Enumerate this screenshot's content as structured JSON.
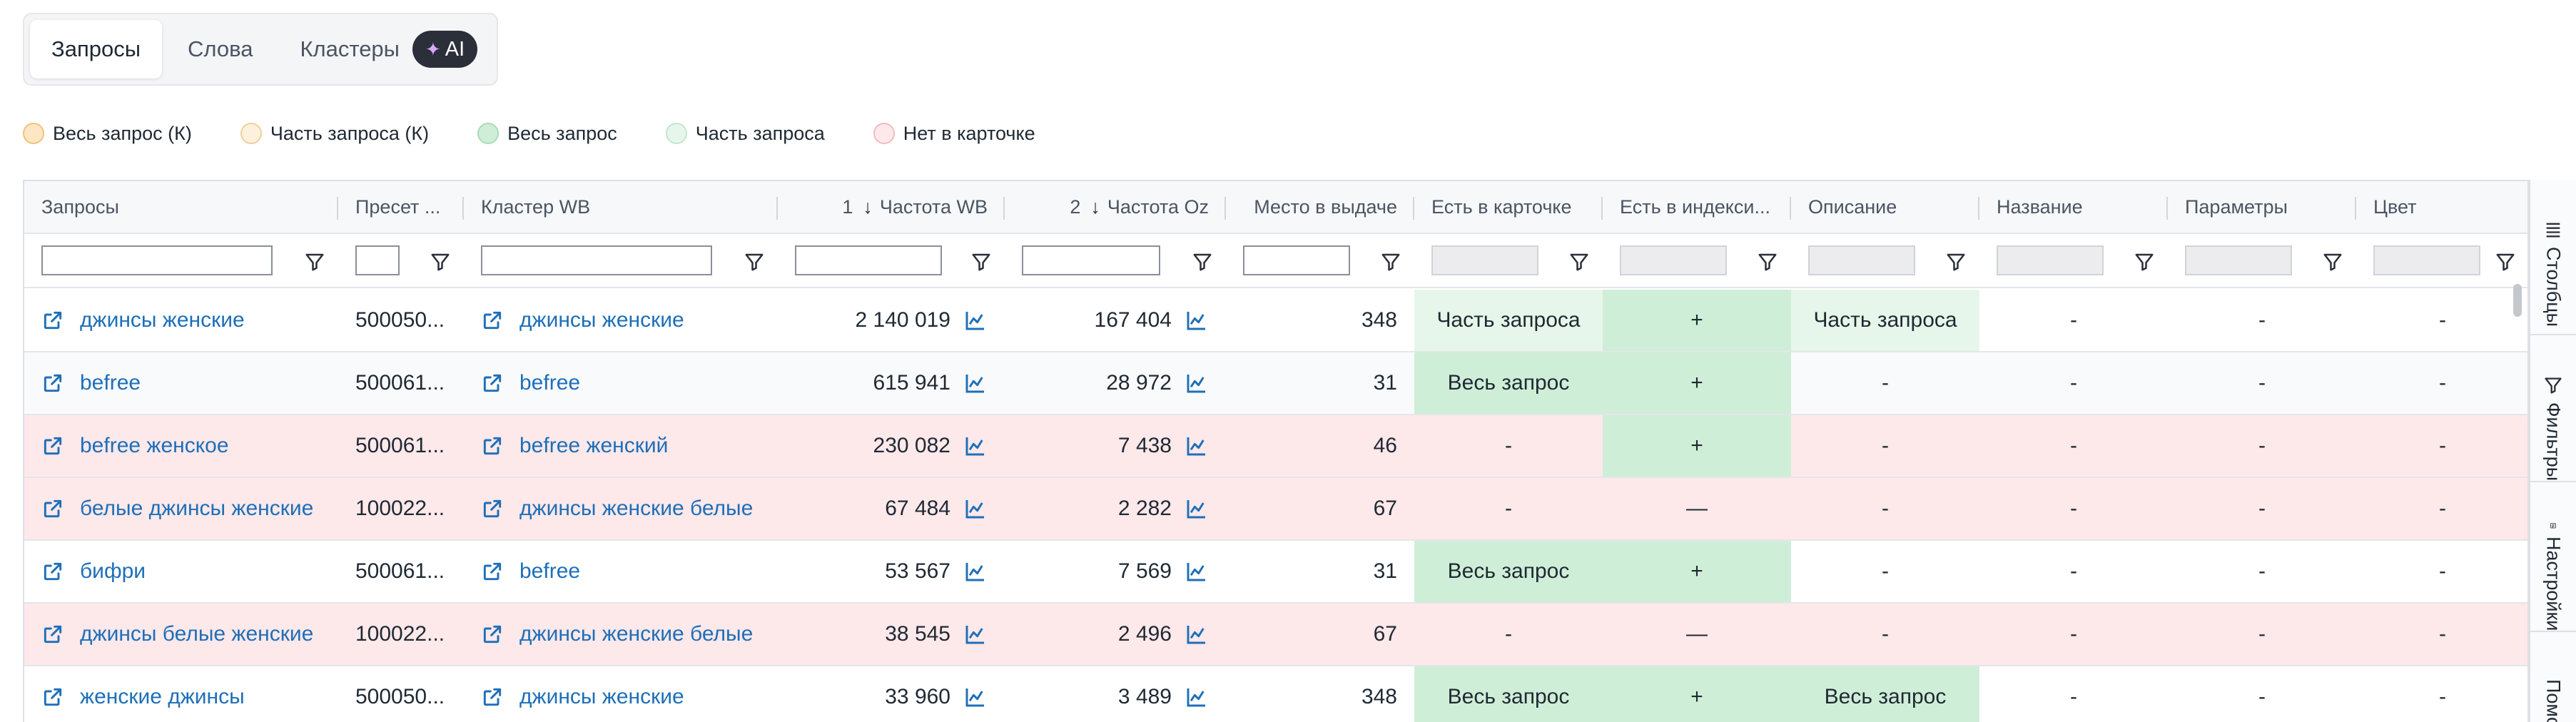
{
  "tabs": [
    {
      "label": "Запросы",
      "active": true
    },
    {
      "label": "Слова",
      "active": false
    },
    {
      "label": "Кластеры",
      "active": false,
      "badge": "AI"
    }
  ],
  "legend": [
    {
      "label": "Весь запрос (К)",
      "fill": "#fde6c4",
      "border": "#f0c27a"
    },
    {
      "label": "Часть запроса (К)",
      "fill": "#fdf1de",
      "border": "#f0cf9a"
    },
    {
      "label": "Весь запрос",
      "fill": "#cfeed7",
      "border": "#a9dcb6"
    },
    {
      "label": "Часть запроса",
      "fill": "#e7f6ea",
      "border": "#c4e6cc"
    },
    {
      "label": "Нет в карточке",
      "fill": "#fde8ea",
      "border": "#f2bcc2"
    }
  ],
  "columns": [
    {
      "key": "query",
      "label": "Запросы",
      "align": "left"
    },
    {
      "key": "preset",
      "label": "Пресет ...",
      "align": "left"
    },
    {
      "key": "cluster",
      "label": "Кластер WB",
      "align": "left"
    },
    {
      "key": "freq_wb",
      "label": "Частота WB",
      "sort_index": "1",
      "sort": "↓",
      "align": "right"
    },
    {
      "key": "freq_oz",
      "label": "Частота Oz",
      "sort_index": "2",
      "sort": "↓",
      "align": "right"
    },
    {
      "key": "place",
      "label": "Место в выдаче",
      "align": "right"
    },
    {
      "key": "in_card",
      "label": "Есть в карточке",
      "align": "left"
    },
    {
      "key": "in_index",
      "label": "Есть в индекси...",
      "align": "left"
    },
    {
      "key": "description",
      "label": "Описание",
      "align": "left"
    },
    {
      "key": "name",
      "label": "Название",
      "align": "left"
    },
    {
      "key": "params",
      "label": "Параметры",
      "align": "left"
    },
    {
      "key": "color",
      "label": "Цвет",
      "align": "left"
    }
  ],
  "rows": [
    {
      "tone": "white",
      "query": "джинсы женские",
      "preset": "500050...",
      "cluster": "джинсы женские",
      "freq_wb": "2 140 019",
      "freq_oz": "167 404",
      "place": "348",
      "in_card": "Часть запроса",
      "in_card_tone": "lightgreen",
      "in_index": "+",
      "description": "Часть запроса",
      "description_tone": "lightgreen",
      "name": "-",
      "params": "-",
      "color": "-"
    },
    {
      "tone": "light",
      "query": "befree",
      "preset": "500061...",
      "cluster": "befree",
      "freq_wb": "615 941",
      "freq_oz": "28 972",
      "place": "31",
      "in_card": "Весь запрос",
      "in_card_tone": "green",
      "in_index": "+",
      "description": "-",
      "description_tone": "",
      "name": "-",
      "params": "-",
      "color": "-"
    },
    {
      "tone": "pink",
      "query": "befree женское",
      "preset": "500061...",
      "cluster": "befree женский",
      "freq_wb": "230 082",
      "freq_oz": "7 438",
      "place": "46",
      "in_card": "-",
      "in_card_tone": "",
      "in_index": "+",
      "description": "-",
      "description_tone": "",
      "name": "-",
      "params": "-",
      "color": "-"
    },
    {
      "tone": "pink",
      "query": "белые джинсы женские",
      "preset": "100022...",
      "cluster": "джинсы женские белые",
      "freq_wb": "67 484",
      "freq_oz": "2 282",
      "place": "67",
      "in_card": "-",
      "in_card_tone": "",
      "in_index": "—",
      "description": "-",
      "description_tone": "",
      "name": "-",
      "params": "-",
      "color": "-"
    },
    {
      "tone": "white",
      "query": "бифри",
      "preset": "500061...",
      "cluster": "befree",
      "freq_wb": "53 567",
      "freq_oz": "7 569",
      "place": "31",
      "in_card": "Весь запрос",
      "in_card_tone": "green",
      "in_index": "+",
      "description": "-",
      "description_tone": "",
      "name": "-",
      "params": "-",
      "color": "-"
    },
    {
      "tone": "pink",
      "query": "джинсы белые женские",
      "preset": "100022...",
      "cluster": "джинсы женские белые",
      "freq_wb": "38 545",
      "freq_oz": "2 496",
      "place": "67",
      "in_card": "-",
      "in_card_tone": "",
      "in_index": "—",
      "description": "-",
      "description_tone": "",
      "name": "-",
      "params": "-",
      "color": "-"
    },
    {
      "tone": "white",
      "query": "женские джинсы",
      "preset": "500050...",
      "cluster": "джинсы женские",
      "freq_wb": "33 960",
      "freq_oz": "3 489",
      "place": "348",
      "in_card": "Весь запрос",
      "in_card_tone": "green",
      "in_index": "+",
      "description": "Весь запрос",
      "description_tone": "green",
      "name": "-",
      "params": "-",
      "color": "-"
    }
  ],
  "side_panel": [
    {
      "label": "Столбцы",
      "icon": "columns-icon"
    },
    {
      "label": "Фильтры",
      "icon": "filter-icon"
    },
    {
      "label": "Настройки",
      "icon": "settings-icon"
    },
    {
      "label": "Помощь",
      "icon": "check-icon"
    }
  ],
  "colors": {
    "link": "#1e6fb8",
    "green": "#cfeed7",
    "light_green": "#e7f6ea",
    "pink": "#fde8ea"
  }
}
